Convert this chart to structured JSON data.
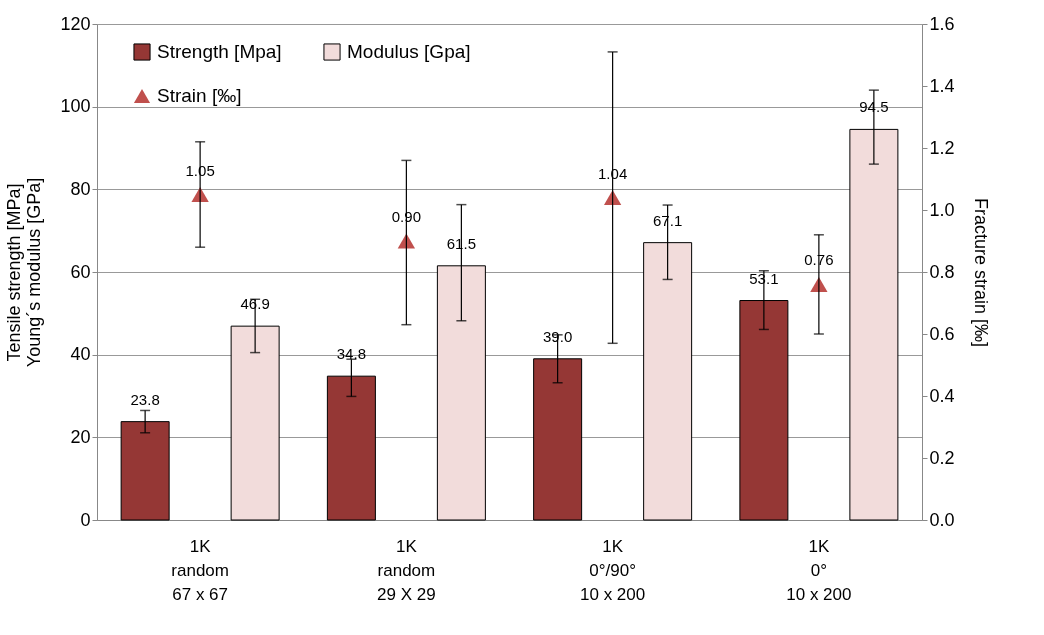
{
  "chart_data": {
    "type": "bar",
    "categories": [
      "1K\nrandom\n67 x 67",
      "1K\nrandom\n29 X 29",
      "1K\n0°/90°\n10 x 200",
      "1K\n0°\n10 x 200"
    ],
    "ylabel": "Tensile strength [MPa]\nYoung´s modulus [GPa]",
    "y2label": "Fracture strain [‰]",
    "ylim": [
      0,
      120
    ],
    "yticks": [
      0,
      20,
      40,
      60,
      80,
      100,
      120
    ],
    "y2lim": [
      0,
      1.6
    ],
    "y2ticks": [
      {
        "value": 0,
        "label": "0.0"
      },
      0.2,
      0.4,
      0.6,
      0.8,
      {
        "value": 1,
        "label": "1.0"
      },
      1.2,
      1.4,
      1.6
    ],
    "grid": "y",
    "legend": "top left",
    "series": [
      {
        "name": "Strength [Mpa]",
        "color": "#953735",
        "values": [
          23.8,
          34.8,
          39.0,
          53.1
        ],
        "value_labels": [
          "23.8",
          "34.8",
          "39.0",
          "53.1"
        ],
        "errors": [
          [
            21.1,
            26.5
          ],
          [
            29.9,
            38.9
          ],
          [
            33.2,
            44.8
          ],
          [
            46.1,
            60.3
          ]
        ]
      },
      {
        "name": "Modulus [Gpa]",
        "color": "#f2dcdb",
        "values": [
          46.9,
          61.5,
          67.1,
          94.5
        ],
        "value_labels": [
          "46.9",
          "61.5",
          "67.1",
          "94.5"
        ],
        "errors": [
          [
            40.5,
            53.4
          ],
          [
            48.2,
            76.3
          ],
          [
            58.2,
            76.2
          ],
          [
            86.1,
            104.0
          ]
        ]
      },
      {
        "name": "Strain [‰]",
        "type": "scatter",
        "axis": "y2",
        "marker": "triangle",
        "color": "#c0504d",
        "values": [
          1.05,
          0.9,
          1.04,
          0.76
        ],
        "value_labels": [
          "1.05",
          "0.90",
          "1.04",
          "0.76"
        ],
        "errors": [
          [
            0.88,
            1.22
          ],
          [
            0.63,
            1.16
          ],
          [
            0.57,
            1.51
          ],
          [
            0.6,
            0.92
          ]
        ]
      }
    ]
  }
}
